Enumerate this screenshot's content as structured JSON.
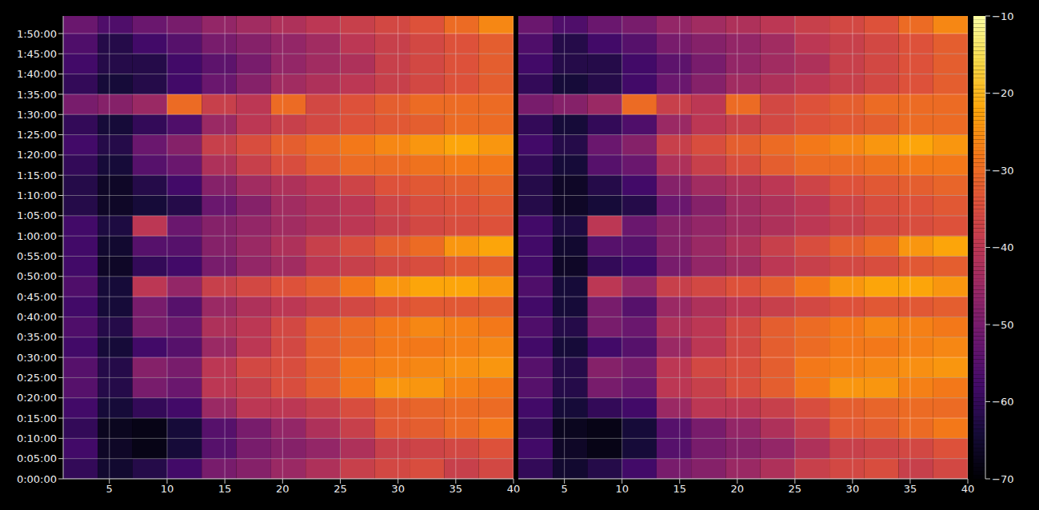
{
  "chart_data": [
    {
      "type": "heatmap",
      "grid": true,
      "xlim": [
        1,
        40
      ],
      "xticks": [
        5,
        10,
        15,
        20,
        25,
        30,
        35,
        40
      ],
      "ylim": [
        0,
        6860
      ],
      "yticks": [
        {
          "value": 0,
          "label": "0:00:00"
        },
        {
          "value": 300,
          "label": "0:05:00"
        },
        {
          "value": 600,
          "label": "0:10:00"
        },
        {
          "value": 900,
          "label": "0:15:00"
        },
        {
          "value": 1200,
          "label": "0:20:00"
        },
        {
          "value": 1500,
          "label": "0:25:00"
        },
        {
          "value": 1800,
          "label": "0:30:00"
        },
        {
          "value": 2100,
          "label": "0:35:00"
        },
        {
          "value": 2400,
          "label": "0:40:00"
        },
        {
          "value": 2700,
          "label": "0:45:00"
        },
        {
          "value": 3000,
          "label": "0:50:00"
        },
        {
          "value": 3300,
          "label": "0:55:00"
        },
        {
          "value": 3600,
          "label": "1:00:00"
        },
        {
          "value": 3900,
          "label": "1:05:00"
        },
        {
          "value": 4200,
          "label": "1:10:00"
        },
        {
          "value": 4500,
          "label": "1:15:00"
        },
        {
          "value": 4800,
          "label": "1:20:00"
        },
        {
          "value": 5100,
          "label": "1:25:00"
        },
        {
          "value": 5400,
          "label": "1:30:00"
        },
        {
          "value": 5700,
          "label": "1:35:00"
        },
        {
          "value": 6000,
          "label": "1:40:00"
        },
        {
          "value": 6300,
          "label": "1:45:00"
        },
        {
          "value": 6600,
          "label": "1:50:00"
        }
      ],
      "x_edges": [
        1,
        4,
        7,
        10,
        13,
        16,
        19,
        22,
        25,
        28,
        31,
        34,
        37,
        40
      ],
      "y_edges": [
        0,
        300,
        600,
        900,
        1200,
        1500,
        1800,
        2100,
        2400,
        2700,
        3000,
        3300,
        3600,
        3900,
        4200,
        4500,
        4800,
        5100,
        5400,
        5700,
        6000,
        6300,
        6600,
        6900
      ],
      "cells": [
        [
          -60,
          -65,
          -62,
          -58,
          -50,
          -48,
          -45,
          -42,
          -38,
          -36,
          -35,
          -38,
          -36
        ],
        [
          -58,
          -66,
          -68,
          -64,
          -55,
          -50,
          -48,
          -46,
          -42,
          -38,
          -37,
          -36,
          -34
        ],
        [
          -60,
          -67,
          -68,
          -64,
          -55,
          -50,
          -46,
          -42,
          -38,
          -33,
          -32,
          -30,
          -28
        ],
        [
          -58,
          -64,
          -60,
          -58,
          -45,
          -40,
          -40,
          -38,
          -35,
          -32,
          -31,
          -30,
          -30
        ],
        [
          -55,
          -62,
          -50,
          -52,
          -40,
          -38,
          -35,
          -32,
          -28,
          -24,
          -24,
          -27,
          -28
        ],
        [
          -55,
          -62,
          -48,
          -50,
          -40,
          -36,
          -35,
          -32,
          -28,
          -27,
          -26,
          -25,
          -24
        ],
        [
          -58,
          -64,
          -58,
          -55,
          -45,
          -40,
          -36,
          -32,
          -30,
          -28,
          -28,
          -27,
          -26
        ],
        [
          -56,
          -62,
          -50,
          -52,
          -42,
          -40,
          -36,
          -32,
          -30,
          -28,
          -26,
          -27,
          -28
        ],
        [
          -58,
          -64,
          -50,
          -55,
          -45,
          -42,
          -40,
          -38,
          -36,
          -34,
          -33,
          -33,
          -32
        ],
        [
          -56,
          -64,
          -40,
          -46,
          -38,
          -36,
          -34,
          -32,
          -28,
          -24,
          -22,
          -22,
          -24
        ],
        [
          -58,
          -66,
          -60,
          -58,
          -50,
          -46,
          -44,
          -40,
          -38,
          -36,
          -35,
          -33,
          -32
        ],
        [
          -58,
          -65,
          -55,
          -55,
          -48,
          -45,
          -42,
          -38,
          -35,
          -32,
          -30,
          -24,
          -22
        ],
        [
          -58,
          -63,
          -40,
          -52,
          -48,
          -46,
          -44,
          -42,
          -40,
          -38,
          -36,
          -35,
          -34
        ],
        [
          -62,
          -66,
          -64,
          -62,
          -52,
          -48,
          -44,
          -42,
          -40,
          -37,
          -35,
          -34,
          -33
        ],
        [
          -62,
          -66,
          -62,
          -58,
          -48,
          -44,
          -42,
          -40,
          -37,
          -34,
          -33,
          -32,
          -31
        ],
        [
          -60,
          -64,
          -55,
          -52,
          -42,
          -38,
          -35,
          -32,
          -30,
          -30,
          -29,
          -28,
          -28
        ],
        [
          -58,
          -62,
          -52,
          -48,
          -38,
          -35,
          -32,
          -30,
          -28,
          -26,
          -24,
          -22,
          -24
        ],
        [
          -60,
          -64,
          -60,
          -56,
          -45,
          -40,
          -38,
          -36,
          -34,
          -33,
          -32,
          -30,
          -30
        ],
        [
          -50,
          -48,
          -45,
          -30,
          -38,
          -40,
          -30,
          -36,
          -34,
          -32,
          -30,
          -30,
          -30
        ],
        [
          -60,
          -64,
          -62,
          -58,
          -52,
          -48,
          -44,
          -42,
          -40,
          -38,
          -36,
          -34,
          -32
        ],
        [
          -58,
          -62,
          -62,
          -58,
          -54,
          -50,
          -46,
          -44,
          -42,
          -38,
          -36,
          -34,
          -32
        ],
        [
          -56,
          -62,
          -58,
          -55,
          -50,
          -48,
          -46,
          -44,
          -40,
          -38,
          -36,
          -34,
          -32
        ],
        [
          -52,
          -56,
          -52,
          -50,
          -46,
          -44,
          -42,
          -40,
          -38,
          -36,
          -34,
          -30,
          -26
        ]
      ],
      "colorbar": {
        "range": [
          -70,
          -10
        ],
        "ticks": [
          {
            "value": -70,
            "label": "−70"
          },
          {
            "value": -60,
            "label": "−60"
          },
          {
            "value": -50,
            "label": "−50"
          },
          {
            "value": -40,
            "label": "−40"
          },
          {
            "value": -30,
            "label": "−30"
          },
          {
            "value": -20,
            "label": "−20"
          },
          {
            "value": -10,
            "label": "−10"
          }
        ]
      }
    },
    {
      "type": "heatmap",
      "grid": true,
      "tick_labels": "x",
      "xlim": [
        1,
        40
      ],
      "xticks": [
        5,
        10,
        15,
        20,
        25,
        30,
        35,
        40
      ],
      "ylim": [
        0,
        6860
      ],
      "yticks": [
        0,
        300,
        600,
        900,
        1200,
        1500,
        1800,
        2100,
        2400,
        2700,
        3000,
        3300,
        3600,
        3900,
        4200,
        4500,
        4800,
        5100,
        5400,
        5700,
        6000,
        6300,
        6600
      ],
      "x_edges": [
        1,
        4,
        7,
        10,
        13,
        16,
        19,
        22,
        25,
        28,
        31,
        34,
        37,
        40
      ],
      "y_edges": [
        0,
        300,
        600,
        900,
        1200,
        1500,
        1800,
        2100,
        2400,
        2700,
        3000,
        3300,
        3600,
        3900,
        4200,
        4500,
        4800,
        5100,
        5400,
        5700,
        6000,
        6300,
        6600,
        6900
      ],
      "cells": [
        [
          -60,
          -65,
          -62,
          -58,
          -50,
          -48,
          -45,
          -42,
          -38,
          -36,
          -35,
          -38,
          -36
        ],
        [
          -58,
          -66,
          -68,
          -64,
          -55,
          -50,
          -48,
          -46,
          -42,
          -38,
          -37,
          -36,
          -34
        ],
        [
          -60,
          -67,
          -68,
          -64,
          -55,
          -50,
          -46,
          -42,
          -38,
          -33,
          -32,
          -30,
          -28
        ],
        [
          -58,
          -64,
          -60,
          -58,
          -45,
          -40,
          -40,
          -38,
          -35,
          -32,
          -31,
          -30,
          -30
        ],
        [
          -55,
          -62,
          -50,
          -52,
          -40,
          -38,
          -35,
          -32,
          -28,
          -24,
          -24,
          -27,
          -28
        ],
        [
          -55,
          -62,
          -48,
          -50,
          -40,
          -36,
          -35,
          -32,
          -28,
          -27,
          -26,
          -25,
          -24
        ],
        [
          -58,
          -64,
          -58,
          -55,
          -45,
          -40,
          -36,
          -32,
          -30,
          -28,
          -28,
          -27,
          -26
        ],
        [
          -56,
          -62,
          -50,
          -52,
          -42,
          -40,
          -36,
          -32,
          -30,
          -28,
          -26,
          -27,
          -28
        ],
        [
          -58,
          -64,
          -50,
          -55,
          -45,
          -42,
          -40,
          -38,
          -36,
          -34,
          -33,
          -33,
          -32
        ],
        [
          -56,
          -64,
          -40,
          -46,
          -38,
          -36,
          -34,
          -32,
          -28,
          -24,
          -22,
          -22,
          -24
        ],
        [
          -58,
          -66,
          -60,
          -58,
          -50,
          -46,
          -44,
          -40,
          -38,
          -36,
          -35,
          -33,
          -32
        ],
        [
          -58,
          -65,
          -55,
          -55,
          -48,
          -45,
          -42,
          -38,
          -35,
          -32,
          -30,
          -24,
          -22
        ],
        [
          -58,
          -63,
          -40,
          -52,
          -48,
          -46,
          -44,
          -42,
          -40,
          -38,
          -36,
          -35,
          -34
        ],
        [
          -62,
          -66,
          -64,
          -62,
          -52,
          -48,
          -44,
          -42,
          -40,
          -37,
          -35,
          -34,
          -33
        ],
        [
          -62,
          -66,
          -62,
          -58,
          -48,
          -44,
          -42,
          -40,
          -37,
          -34,
          -33,
          -32,
          -31
        ],
        [
          -60,
          -64,
          -55,
          -52,
          -42,
          -38,
          -35,
          -32,
          -30,
          -30,
          -29,
          -28,
          -28
        ],
        [
          -58,
          -62,
          -52,
          -48,
          -38,
          -35,
          -32,
          -30,
          -28,
          -26,
          -24,
          -22,
          -24
        ],
        [
          -60,
          -64,
          -60,
          -56,
          -45,
          -40,
          -38,
          -36,
          -34,
          -33,
          -32,
          -30,
          -30
        ],
        [
          -50,
          -48,
          -45,
          -30,
          -38,
          -40,
          -30,
          -36,
          -34,
          -32,
          -30,
          -30,
          -30
        ],
        [
          -60,
          -64,
          -62,
          -58,
          -52,
          -48,
          -44,
          -42,
          -40,
          -38,
          -36,
          -34,
          -32
        ],
        [
          -58,
          -62,
          -62,
          -58,
          -54,
          -50,
          -46,
          -44,
          -42,
          -38,
          -36,
          -34,
          -32
        ],
        [
          -56,
          -62,
          -58,
          -55,
          -50,
          -48,
          -46,
          -44,
          -40,
          -38,
          -36,
          -34,
          -32
        ],
        [
          -52,
          -56,
          -52,
          -50,
          -46,
          -44,
          -42,
          -40,
          -38,
          -36,
          -34,
          -30,
          -26
        ]
      ],
      "colorbar": {
        "range": [
          -70,
          -10
        ],
        "ticks": [
          {
            "value": -70,
            "label": "−70"
          },
          {
            "value": -60,
            "label": "−60"
          },
          {
            "value": -50,
            "label": "−50"
          },
          {
            "value": -40,
            "label": "−40"
          },
          {
            "value": -30,
            "label": "−30"
          },
          {
            "value": -20,
            "label": "−20"
          },
          {
            "value": -10,
            "label": "−10"
          }
        ]
      }
    }
  ]
}
